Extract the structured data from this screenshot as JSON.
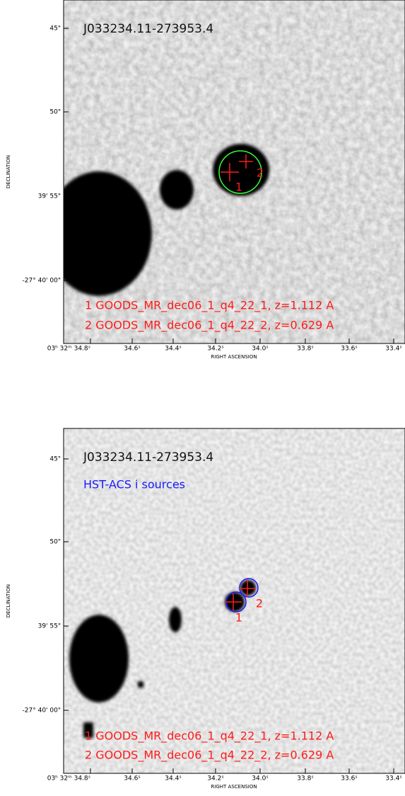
{
  "panels": [
    {
      "title": "J033234.11-273953.4",
      "source_labels": [
        "1",
        "2"
      ],
      "legend": [
        "1 GOODS_MR_dec06_1_q4_22_1, z=1.112 A",
        "2 GOODS_MR_dec06_1_q4_22_2, z=0.629 A"
      ],
      "yticks": [
        "45\"",
        "50\"",
        "39' 55\"",
        "-27° 40' 00\""
      ],
      "xticks": [
        "03ʰ 32ᵐ 34.8ˢ",
        "34.6ˢ",
        "34.4ˢ",
        "34.2ˢ",
        "34.0ˢ",
        "33.8ˢ",
        "33.6ˢ",
        "33.4ˢ"
      ],
      "xlabel": "RIGHT ASCENSION",
      "ylabel": "DECLINATION"
    },
    {
      "title": "J033234.11-273953.4",
      "catalog": "HST-ACS i sources",
      "source_labels": [
        "1",
        "2"
      ],
      "legend": [
        "1 GOODS_MR_dec06_1_q4_22_1, z=1.112 A",
        "2 GOODS_MR_dec06_1_q4_22_2, z=0.629 A"
      ],
      "yticks": [
        "45\"",
        "50\"",
        "39' 55\"",
        "-27° 40' 00\""
      ],
      "xticks": [
        "03ʰ 32ᵐ 34.8ˢ",
        "34.6ˢ",
        "34.4ˢ",
        "34.2ˢ",
        "34.0ˢ",
        "33.8ˢ",
        "33.6ˢ",
        "33.4ˢ"
      ],
      "xlabel": "RIGHT ASCENSION",
      "ylabel": "DECLINATION"
    }
  ]
}
